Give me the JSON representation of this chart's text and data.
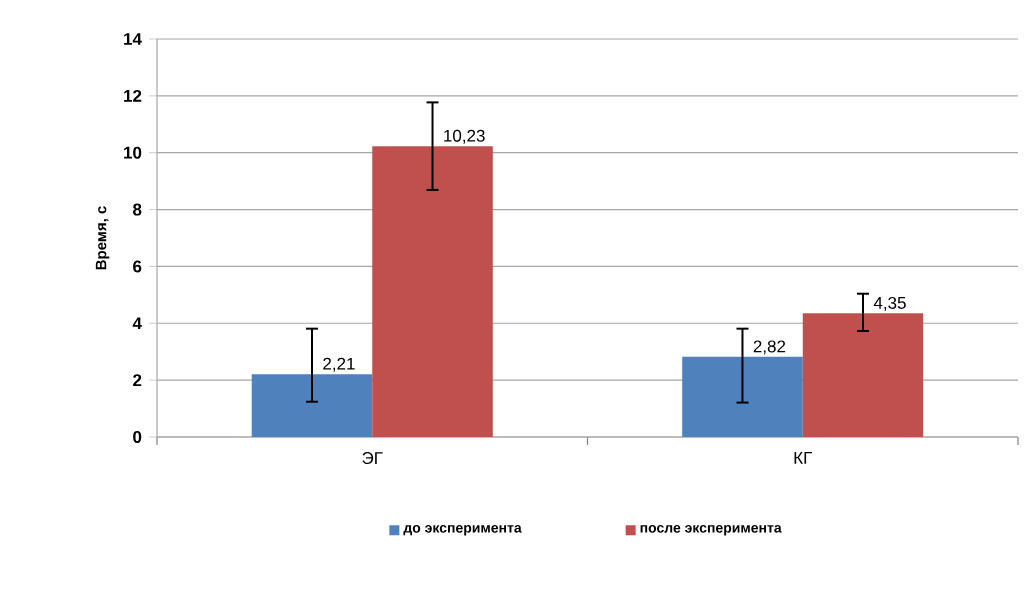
{
  "chart_data": {
    "type": "bar",
    "ylabel": "Время, с",
    "categories": [
      "ЭГ",
      "КГ"
    ],
    "series": [
      {
        "name": "до эксперимента",
        "color": "#4f81bd",
        "values": [
          2.21,
          2.82
        ],
        "errors": [
          [
            1.24,
            3.81
          ],
          [
            1.21,
            3.81
          ]
        ],
        "value_labels": [
          "2,21",
          "2,82"
        ]
      },
      {
        "name": "после эксперимента",
        "color": "#c0504d",
        "values": [
          10.23,
          4.35
        ],
        "errors": [
          [
            8.69,
            11.77
          ],
          [
            3.73,
            5.04
          ]
        ],
        "value_labels": [
          "10,23",
          "4,35"
        ]
      }
    ],
    "ylim": [
      0,
      14
    ],
    "yticks": [
      0,
      2,
      4,
      6,
      8,
      10,
      12,
      14
    ],
    "grid": "y",
    "legend": "bottom"
  }
}
